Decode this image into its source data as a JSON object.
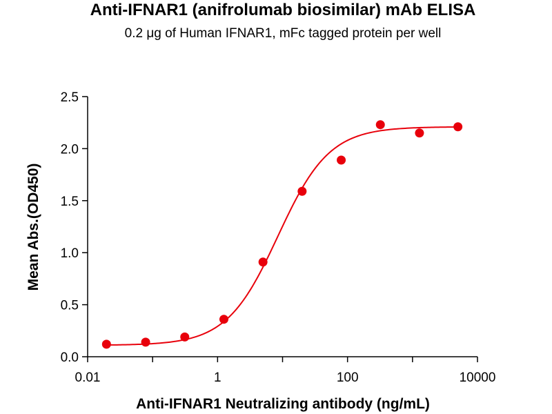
{
  "chart_data": {
    "type": "scatter",
    "title": "Anti-IFNAR1 (anifrolumab biosimilar) mAb ELISA",
    "subtitle": "0.2 μg of Human IFNAR1, mFc tagged protein per well",
    "xlabel": "Anti-IFNAR1 Neutralizing antibody (ng/mL)",
    "ylabel": "Mean Abs.(OD450)",
    "x_scale": "log",
    "xlim": [
      0.01,
      10000
    ],
    "ylim": [
      0,
      2.5
    ],
    "x_ticks": [
      {
        "value": 0.01,
        "label": "0.01"
      },
      {
        "value": 1,
        "label": "1"
      },
      {
        "value": 100,
        "label": "100"
      },
      {
        "value": 10000,
        "label": "10000"
      }
    ],
    "y_ticks": [
      {
        "value": 0.0,
        "label": "0.0"
      },
      {
        "value": 0.5,
        "label": "0.5"
      },
      {
        "value": 1.0,
        "label": "1.0"
      },
      {
        "value": 1.5,
        "label": "1.5"
      },
      {
        "value": 2.0,
        "label": "2.0"
      },
      {
        "value": 2.5,
        "label": "2.5"
      }
    ],
    "grid": false,
    "legend": "none",
    "series": [
      {
        "color": "#e8000b",
        "points": [
          {
            "x": 0.0195,
            "y": 0.12
          },
          {
            "x": 0.0781,
            "y": 0.14
          },
          {
            "x": 0.3125,
            "y": 0.19
          },
          {
            "x": 1.25,
            "y": 0.36
          },
          {
            "x": 5,
            "y": 0.91
          },
          {
            "x": 20,
            "y": 1.59
          },
          {
            "x": 80,
            "y": 1.89
          },
          {
            "x": 320,
            "y": 2.23
          },
          {
            "x": 1280,
            "y": 2.15
          },
          {
            "x": 5000,
            "y": 2.21
          }
        ],
        "fit": {
          "model": "4PL",
          "bottom": 0.11,
          "top": 2.21,
          "ec50": 8.5,
          "hill": 1.1
        }
      }
    ]
  }
}
